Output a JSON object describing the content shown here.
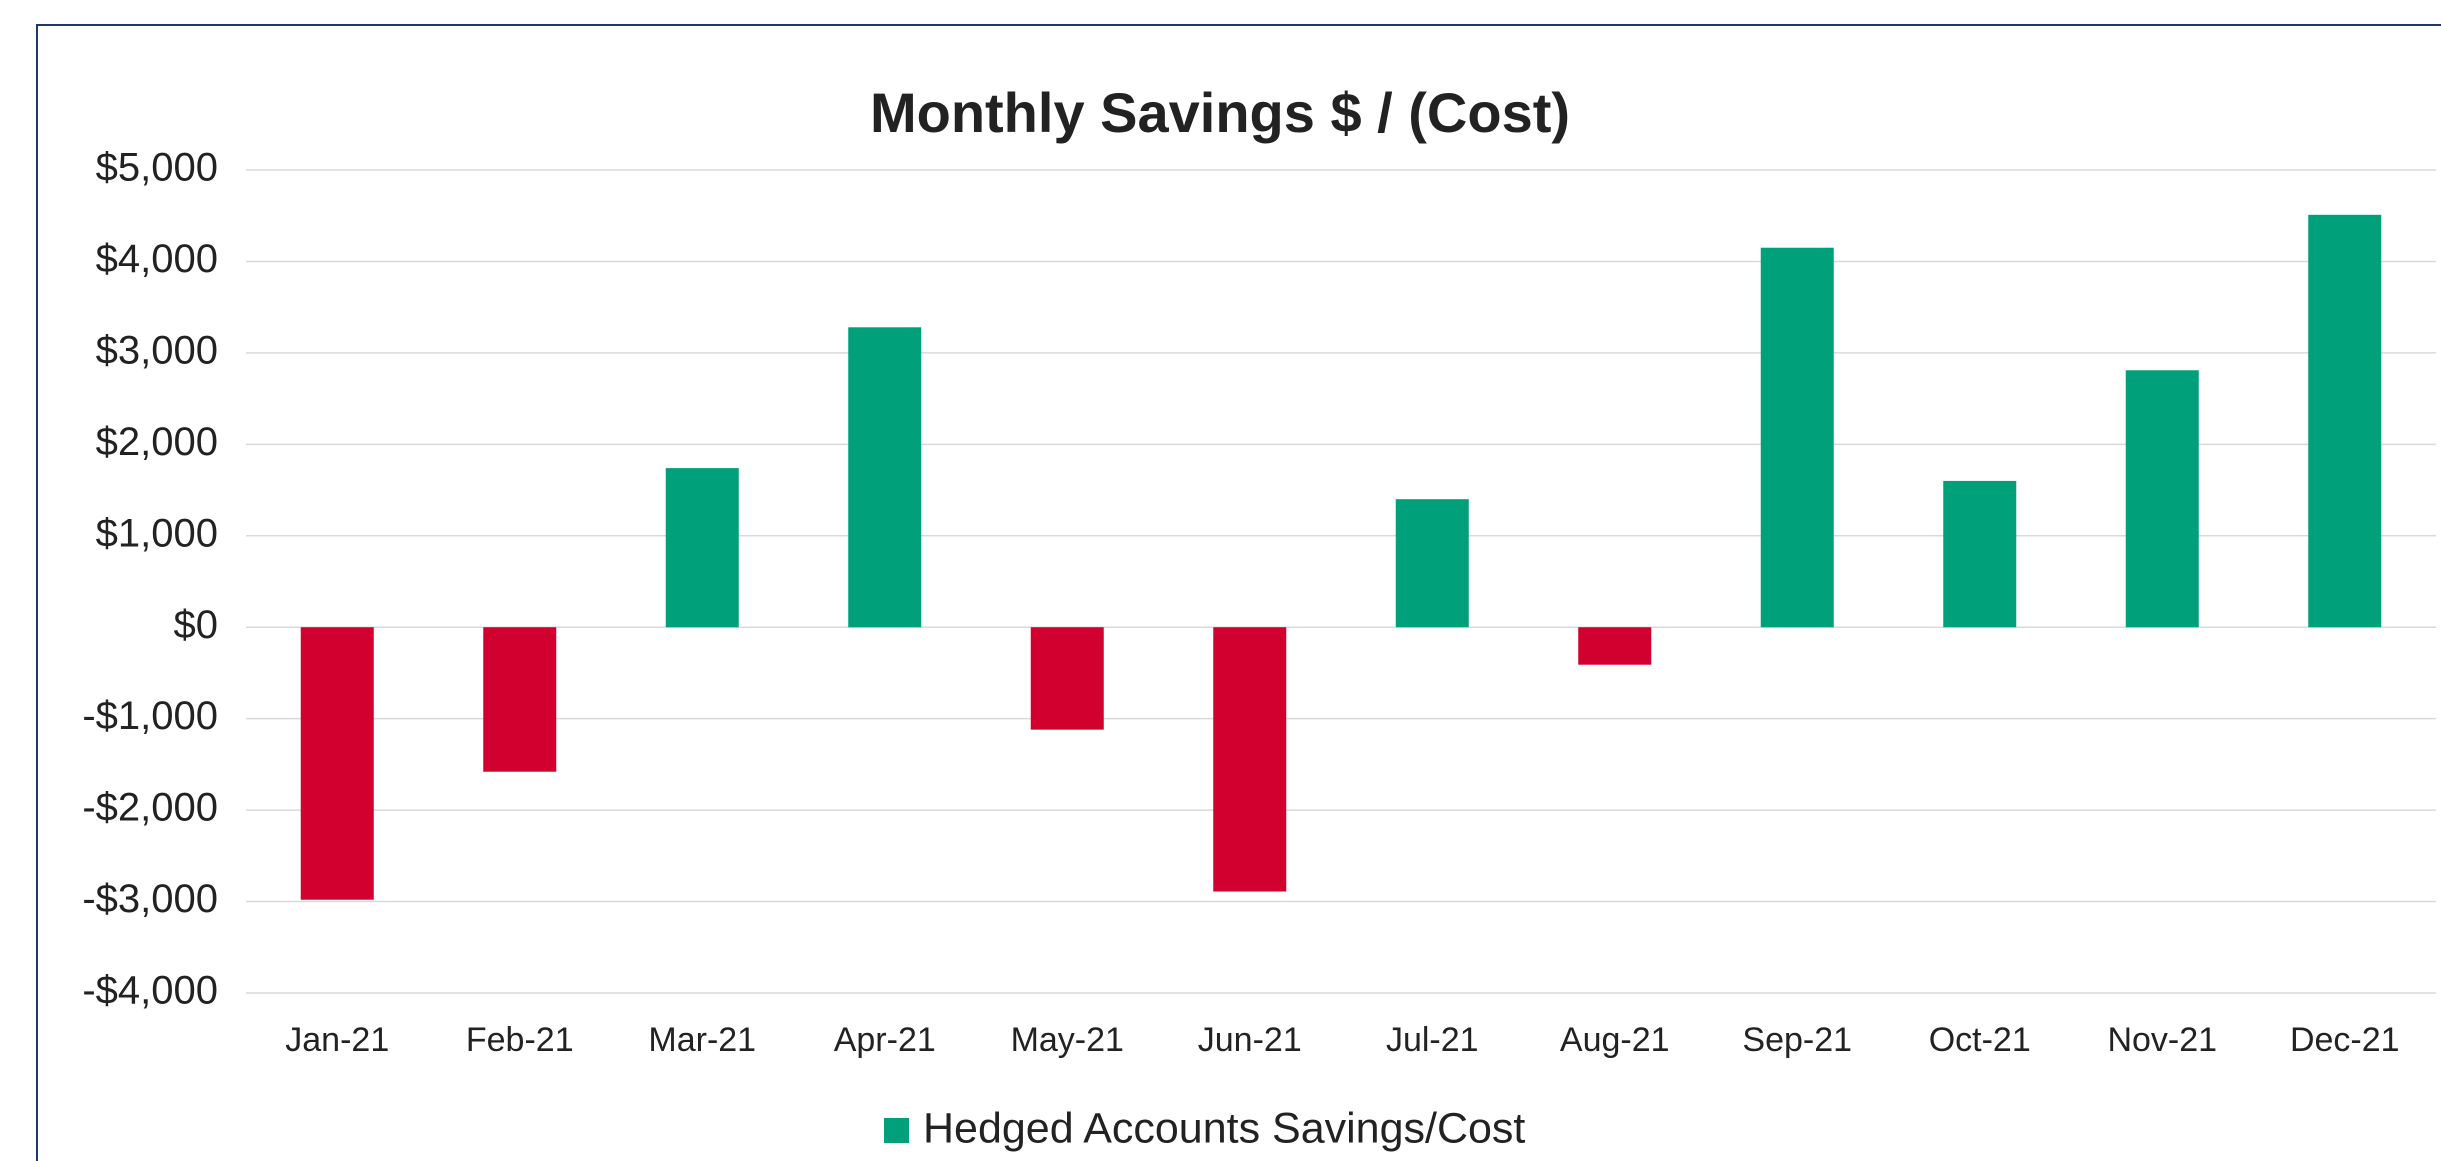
{
  "chart_data": {
    "type": "bar",
    "title": "Monthly Savings $ / (Cost)",
    "categories": [
      "Jan-21",
      "Feb-21",
      "Mar-21",
      "Apr-21",
      "May-21",
      "Jun-21",
      "Jul-21",
      "Aug-21",
      "Sep-21",
      "Oct-21",
      "Nov-21",
      "Dec-21"
    ],
    "series": [
      {
        "name": "Hedged Accounts Savings/Cost",
        "color": "#00a07a",
        "negative_color": "#d2002f",
        "values": [
          -2980,
          -1580,
          1740,
          3280,
          -1120,
          -2890,
          1400,
          -410,
          4150,
          1600,
          2810,
          4510
        ]
      }
    ],
    "ylim": [
      -4000,
      5000
    ],
    "yticks": [
      {
        "value": -4000,
        "label": "-$4,000"
      },
      {
        "value": -3000,
        "label": "-$3,000"
      },
      {
        "value": -2000,
        "label": "-$2,000"
      },
      {
        "value": -1000,
        "label": "-$1,000"
      },
      {
        "value": 0,
        "label": "$0"
      },
      {
        "value": 1000,
        "label": "$1,000"
      },
      {
        "value": 2000,
        "label": "$2,000"
      },
      {
        "value": 3000,
        "label": "$3,000"
      },
      {
        "value": 4000,
        "label": "$4,000"
      },
      {
        "value": 5000,
        "label": "$5,000"
      }
    ],
    "grid": true,
    "legend": "bottom"
  }
}
